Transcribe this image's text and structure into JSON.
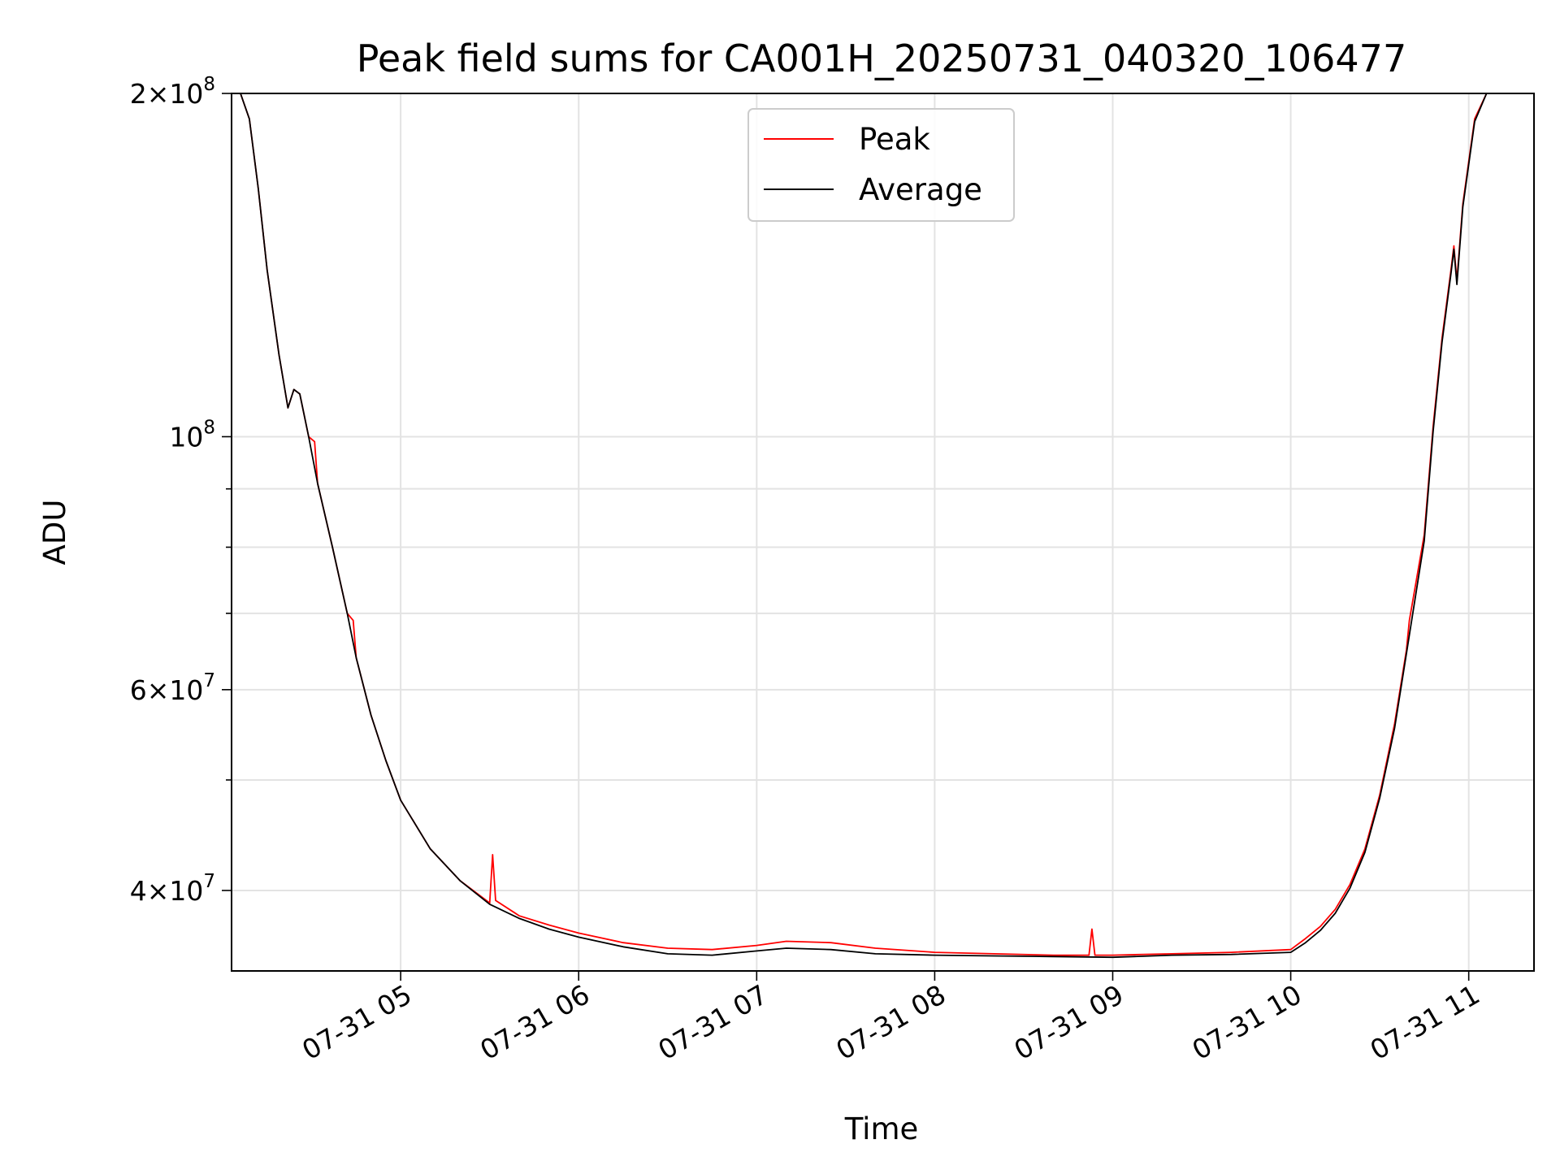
{
  "chart_data": {
    "type": "line",
    "title": "Peak field sums for CA001H_20250731_040320_106477",
    "xlabel": "Time",
    "ylabel": "ADU",
    "yscale": "log",
    "xlim": [
      "2025-07-31T04:03",
      "2025-07-31T11:22"
    ],
    "ylim": [
      34000000,
      200000000
    ],
    "grid": true,
    "legend_position": "upper center",
    "x_ticks": [
      {
        "value": "2025-07-31T05:00",
        "label": "07-31 05"
      },
      {
        "value": "2025-07-31T06:00",
        "label": "07-31 06"
      },
      {
        "value": "2025-07-31T07:00",
        "label": "07-31 07"
      },
      {
        "value": "2025-07-31T08:00",
        "label": "07-31 08"
      },
      {
        "value": "2025-07-31T09:00",
        "label": "07-31 09"
      },
      {
        "value": "2025-07-31T10:00",
        "label": "07-31 10"
      },
      {
        "value": "2025-07-31T11:00",
        "label": "07-31 11"
      }
    ],
    "y_major_ticks": [
      {
        "value": 200000000,
        "mantissa": "2",
        "exponent": "8"
      },
      {
        "value": 100000000,
        "mantissa": "",
        "exponent": "8"
      },
      {
        "value": 60000000,
        "mantissa": "6",
        "exponent": "7"
      },
      {
        "value": 40000000,
        "mantissa": "4",
        "exponent": "7"
      }
    ],
    "y_minor_ticks": [
      90000000,
      80000000,
      70000000,
      50000000
    ],
    "series": [
      {
        "name": "Peak",
        "color": "#ff0000",
        "points": [
          [
            "2025-07-31T04:03",
            200000000
          ],
          [
            "2025-07-31T04:06",
            200000000
          ],
          [
            "2025-07-31T04:09",
            190000000
          ],
          [
            "2025-07-31T04:12",
            165000000
          ],
          [
            "2025-07-31T04:15",
            140000000
          ],
          [
            "2025-07-31T04:19",
            118000000
          ],
          [
            "2025-07-31T04:22",
            106000000
          ],
          [
            "2025-07-31T04:24",
            110000000
          ],
          [
            "2025-07-31T04:26",
            109000000
          ],
          [
            "2025-07-31T04:29",
            100000000
          ],
          [
            "2025-07-31T04:31",
            99000000
          ],
          [
            "2025-07-31T04:32",
            91000000
          ],
          [
            "2025-07-31T04:37",
            80000000
          ],
          [
            "2025-07-31T04:42",
            70000000
          ],
          [
            "2025-07-31T04:44",
            69000000
          ],
          [
            "2025-07-31T04:45",
            64000000
          ],
          [
            "2025-07-31T04:50",
            57000000
          ],
          [
            "2025-07-31T04:55",
            52000000
          ],
          [
            "2025-07-31T05:00",
            48000000
          ],
          [
            "2025-07-31T05:10",
            43500000
          ],
          [
            "2025-07-31T05:20",
            40800000
          ],
          [
            "2025-07-31T05:30",
            39000000
          ],
          [
            "2025-07-31T05:31",
            43000000
          ],
          [
            "2025-07-31T05:32",
            39200000
          ],
          [
            "2025-07-31T05:40",
            38000000
          ],
          [
            "2025-07-31T05:50",
            37300000
          ],
          [
            "2025-07-31T06:00",
            36700000
          ],
          [
            "2025-07-31T06:15",
            36000000
          ],
          [
            "2025-07-31T06:30",
            35600000
          ],
          [
            "2025-07-31T06:45",
            35500000
          ],
          [
            "2025-07-31T07:00",
            35800000
          ],
          [
            "2025-07-31T07:10",
            36100000
          ],
          [
            "2025-07-31T07:25",
            36000000
          ],
          [
            "2025-07-31T07:40",
            35600000
          ],
          [
            "2025-07-31T08:00",
            35300000
          ],
          [
            "2025-07-31T08:20",
            35200000
          ],
          [
            "2025-07-31T08:40",
            35100000
          ],
          [
            "2025-07-31T08:52",
            35100000
          ],
          [
            "2025-07-31T08:53",
            37000000
          ],
          [
            "2025-07-31T08:54",
            35100000
          ],
          [
            "2025-07-31T09:00",
            35100000
          ],
          [
            "2025-07-31T09:20",
            35200000
          ],
          [
            "2025-07-31T09:40",
            35300000
          ],
          [
            "2025-07-31T10:00",
            35500000
          ],
          [
            "2025-07-31T10:05",
            36300000
          ],
          [
            "2025-07-31T10:10",
            37200000
          ],
          [
            "2025-07-31T10:15",
            38500000
          ],
          [
            "2025-07-31T10:20",
            40500000
          ],
          [
            "2025-07-31T10:25",
            43500000
          ],
          [
            "2025-07-31T10:30",
            48500000
          ],
          [
            "2025-07-31T10:35",
            56000000
          ],
          [
            "2025-07-31T10:39",
            65000000
          ],
          [
            "2025-07-31T10:40",
            69000000
          ],
          [
            "2025-07-31T10:45",
            82000000
          ],
          [
            "2025-07-31T10:48",
            102000000
          ],
          [
            "2025-07-31T10:51",
            122000000
          ],
          [
            "2025-07-31T10:54",
            140000000
          ],
          [
            "2025-07-31T10:55",
            147000000
          ],
          [
            "2025-07-31T10:56",
            137000000
          ],
          [
            "2025-07-31T10:58",
            160000000
          ],
          [
            "2025-07-31T11:02",
            190000000
          ],
          [
            "2025-07-31T11:06",
            200000000
          ],
          [
            "2025-07-31T11:22",
            200000000
          ]
        ]
      },
      {
        "name": "Average",
        "color": "#000000",
        "points": [
          [
            "2025-07-31T04:03",
            200000000
          ],
          [
            "2025-07-31T04:06",
            200000000
          ],
          [
            "2025-07-31T04:09",
            190000000
          ],
          [
            "2025-07-31T04:12",
            165000000
          ],
          [
            "2025-07-31T04:15",
            140000000
          ],
          [
            "2025-07-31T04:19",
            118000000
          ],
          [
            "2025-07-31T04:22",
            106000000
          ],
          [
            "2025-07-31T04:24",
            110000000
          ],
          [
            "2025-07-31T04:26",
            109000000
          ],
          [
            "2025-07-31T04:29",
            100000000
          ],
          [
            "2025-07-31T04:32",
            91000000
          ],
          [
            "2025-07-31T04:37",
            80000000
          ],
          [
            "2025-07-31T04:42",
            70000000
          ],
          [
            "2025-07-31T04:45",
            64000000
          ],
          [
            "2025-07-31T04:50",
            57000000
          ],
          [
            "2025-07-31T04:55",
            52000000
          ],
          [
            "2025-07-31T05:00",
            48000000
          ],
          [
            "2025-07-31T05:10",
            43500000
          ],
          [
            "2025-07-31T05:20",
            40800000
          ],
          [
            "2025-07-31T05:30",
            38900000
          ],
          [
            "2025-07-31T05:40",
            37800000
          ],
          [
            "2025-07-31T05:50",
            37000000
          ],
          [
            "2025-07-31T06:00",
            36400000
          ],
          [
            "2025-07-31T06:15",
            35700000
          ],
          [
            "2025-07-31T06:30",
            35200000
          ],
          [
            "2025-07-31T06:45",
            35100000
          ],
          [
            "2025-07-31T07:00",
            35400000
          ],
          [
            "2025-07-31T07:10",
            35600000
          ],
          [
            "2025-07-31T07:25",
            35500000
          ],
          [
            "2025-07-31T07:40",
            35200000
          ],
          [
            "2025-07-31T08:00",
            35100000
          ],
          [
            "2025-07-31T08:20",
            35050000
          ],
          [
            "2025-07-31T08:40",
            35000000
          ],
          [
            "2025-07-31T09:00",
            34950000
          ],
          [
            "2025-07-31T09:20",
            35100000
          ],
          [
            "2025-07-31T09:40",
            35150000
          ],
          [
            "2025-07-31T10:00",
            35300000
          ],
          [
            "2025-07-31T10:05",
            36000000
          ],
          [
            "2025-07-31T10:10",
            36900000
          ],
          [
            "2025-07-31T10:15",
            38200000
          ],
          [
            "2025-07-31T10:20",
            40200000
          ],
          [
            "2025-07-31T10:25",
            43200000
          ],
          [
            "2025-07-31T10:30",
            48200000
          ],
          [
            "2025-07-31T10:35",
            55500000
          ],
          [
            "2025-07-31T10:40",
            67000000
          ],
          [
            "2025-07-31T10:45",
            81000000
          ],
          [
            "2025-07-31T10:48",
            101000000
          ],
          [
            "2025-07-31T10:51",
            121000000
          ],
          [
            "2025-07-31T10:54",
            139000000
          ],
          [
            "2025-07-31T10:55",
            146000000
          ],
          [
            "2025-07-31T10:56",
            136000000
          ],
          [
            "2025-07-31T10:58",
            159000000
          ],
          [
            "2025-07-31T11:02",
            189000000
          ],
          [
            "2025-07-31T11:06",
            200000000
          ],
          [
            "2025-07-31T11:22",
            200000000
          ]
        ]
      }
    ]
  }
}
